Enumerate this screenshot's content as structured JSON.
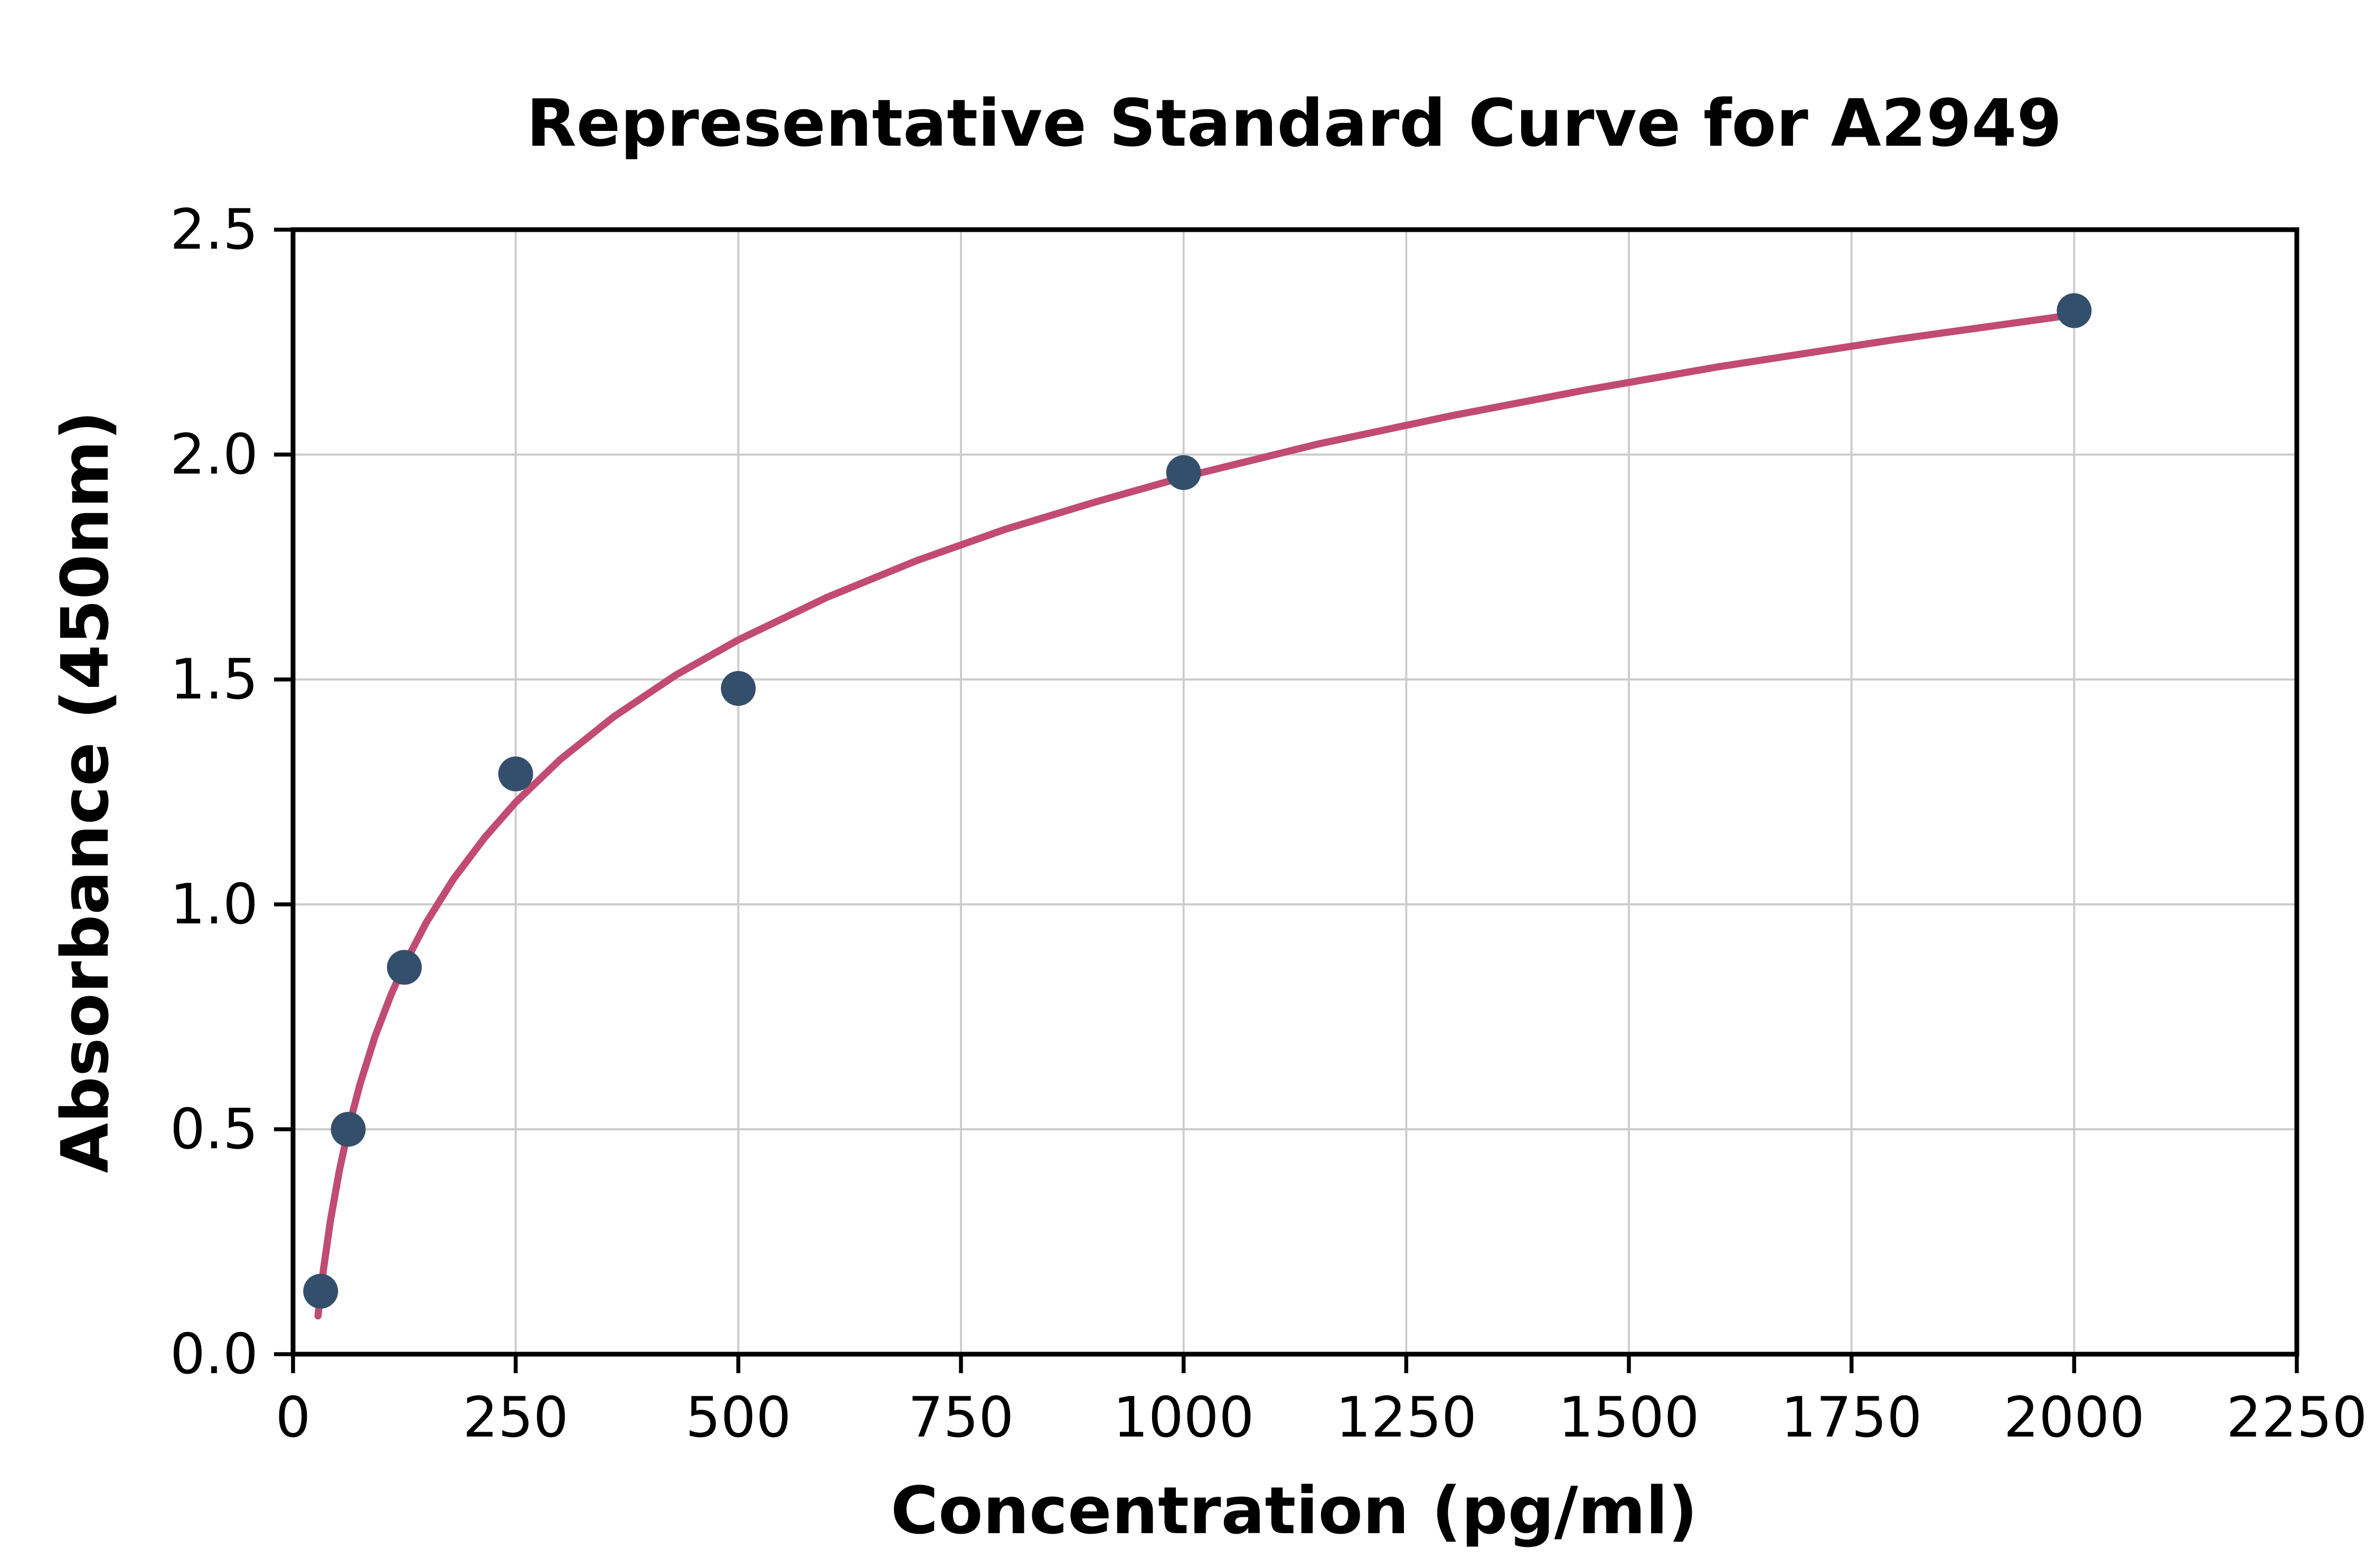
{
  "chart_data": {
    "type": "scatter",
    "title": "Representative Standard Curve for A2949",
    "xlabel": "Concentration (pg/ml)",
    "ylabel": "Absorbance (450nm)",
    "xlim": [
      0,
      2250
    ],
    "ylim": [
      0,
      2.5
    ],
    "grid": true,
    "legend": "none",
    "x_ticks": [
      0,
      250,
      500,
      750,
      1000,
      1250,
      1500,
      1750,
      2000,
      2250
    ],
    "x_tick_labels": [
      "0",
      "250",
      "500",
      "750",
      "1000",
      "1250",
      "1500",
      "1750",
      "2000",
      "2250"
    ],
    "y_ticks": [
      0.0,
      0.5,
      1.0,
      1.5,
      2.0,
      2.5
    ],
    "y_tick_labels": [
      "0.0",
      "0.5",
      "1.0",
      "1.5",
      "2.0",
      "2.5"
    ],
    "series": [
      {
        "name": "standard-points",
        "type": "scatter",
        "color": "#344f6b",
        "points": [
          [
            31,
            0.14
          ],
          [
            62,
            0.5
          ],
          [
            125,
            0.86
          ],
          [
            250,
            1.29
          ],
          [
            500,
            1.48
          ],
          [
            1000,
            1.96
          ],
          [
            2000,
            2.32
          ]
        ]
      },
      {
        "name": "fitted-curve",
        "type": "line",
        "color": "#c14b72",
        "points": [
          [
            28,
            0.085
          ],
          [
            34,
            0.186
          ],
          [
            42,
            0.297
          ],
          [
            52,
            0.408
          ],
          [
            62,
            0.5
          ],
          [
            75,
            0.599
          ],
          [
            92,
            0.706
          ],
          [
            110,
            0.799
          ],
          [
            125,
            0.866
          ],
          [
            150,
            0.961
          ],
          [
            180,
            1.056
          ],
          [
            215,
            1.148
          ],
          [
            250,
            1.227
          ],
          [
            300,
            1.322
          ],
          [
            360,
            1.417
          ],
          [
            430,
            1.51
          ],
          [
            500,
            1.588
          ],
          [
            600,
            1.683
          ],
          [
            700,
            1.764
          ],
          [
            800,
            1.834
          ],
          [
            900,
            1.894
          ],
          [
            1000,
            1.95
          ],
          [
            1150,
            2.023
          ],
          [
            1300,
            2.086
          ],
          [
            1450,
            2.143
          ],
          [
            1600,
            2.195
          ],
          [
            1800,
            2.256
          ],
          [
            2000,
            2.311
          ]
        ]
      }
    ],
    "colors": {
      "grid": "#cccccc",
      "axis": "#000000",
      "background": "#ffffff"
    }
  }
}
